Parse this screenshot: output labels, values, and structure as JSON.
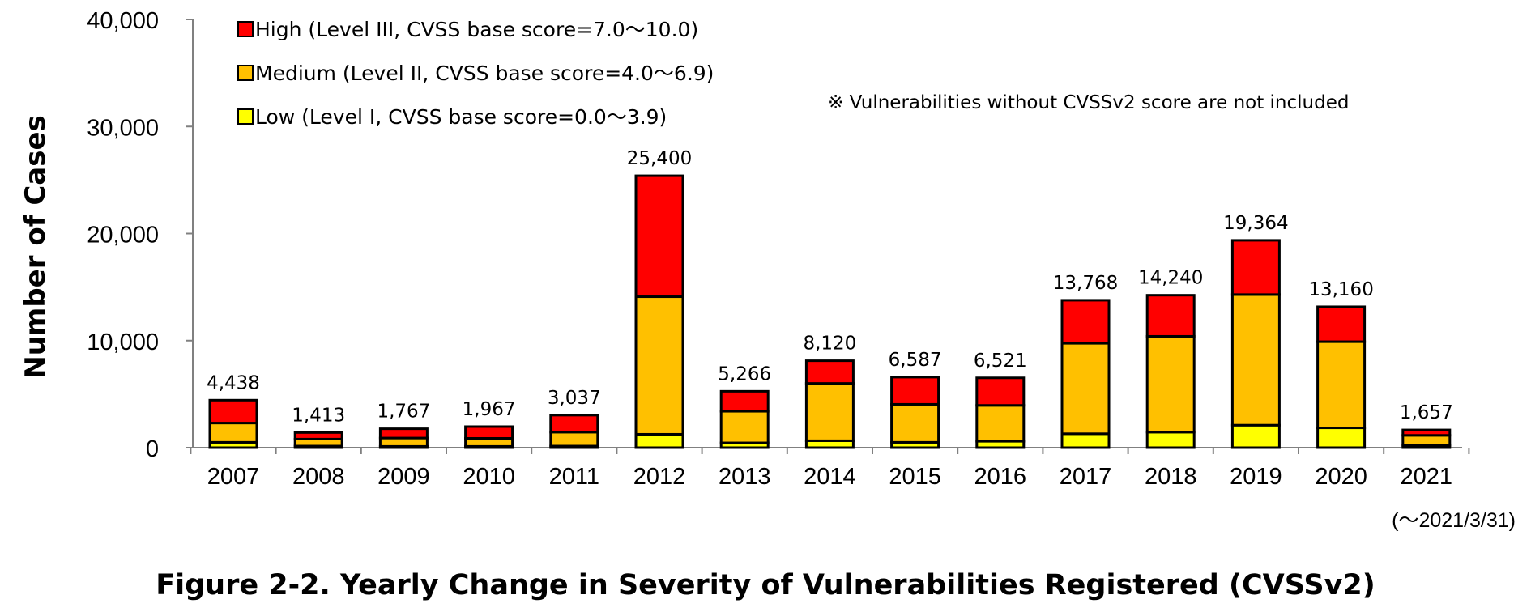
{
  "chart_data": {
    "type": "bar",
    "stacked": true,
    "title": "Figure 2-2. Yearly Change in Severity of Vulnerabilities Registered (CVSSv2)",
    "ylabel": "Number of Cases",
    "xlabel": "",
    "ylim": [
      0,
      40000
    ],
    "yticks": [
      "0",
      "10,000",
      "20,000",
      "30,000",
      "40,000"
    ],
    "categories": [
      "2007",
      "2008",
      "2009",
      "2010",
      "2011",
      "2012",
      "2013",
      "2014",
      "2015",
      "2016",
      "2017",
      "2018",
      "2019",
      "2020",
      "2021"
    ],
    "last_category_note": "(～2021/3/31)",
    "totals": [
      4438,
      1413,
      1767,
      1967,
      3037,
      25400,
      5266,
      8120,
      6587,
      6521,
      13768,
      14240,
      19364,
      13160,
      1657
    ],
    "total_labels": [
      "4,438",
      "1,413",
      "1,767",
      "1,967",
      "3,037",
      "25,400",
      "5,266",
      "8,120",
      "6,587",
      "6,521",
      "13,768",
      "14,240",
      "19,364",
      "13,160",
      "1,657"
    ],
    "series": [
      {
        "name": "Low (Level I, CVSS base score=0.0～3.9)",
        "color": "#ffff00",
        "values": [
          500,
          150,
          120,
          120,
          150,
          1250,
          450,
          650,
          500,
          600,
          1300,
          1450,
          2100,
          1850,
          200
        ]
      },
      {
        "name": "Medium (Level II, CVSS base score=4.0～6.9)",
        "color": "#ffc000",
        "values": [
          1800,
          650,
          780,
          750,
          1300,
          12850,
          2950,
          5350,
          3550,
          3350,
          8450,
          8950,
          12200,
          8050,
          950
        ]
      },
      {
        "name": "High (Level III, CVSS base score=7.0～10.0)",
        "color": "#ff0000",
        "values": [
          2138,
          613,
          867,
          1097,
          1587,
          11300,
          1866,
          2120,
          2537,
          2571,
          4018,
          3840,
          5064,
          3260,
          507
        ]
      }
    ],
    "legend_order": [
      2,
      1,
      0
    ],
    "legend_position": "top-left",
    "note": "※ Vulnerabilities without CVSSv2 score are not included",
    "grid": false
  }
}
